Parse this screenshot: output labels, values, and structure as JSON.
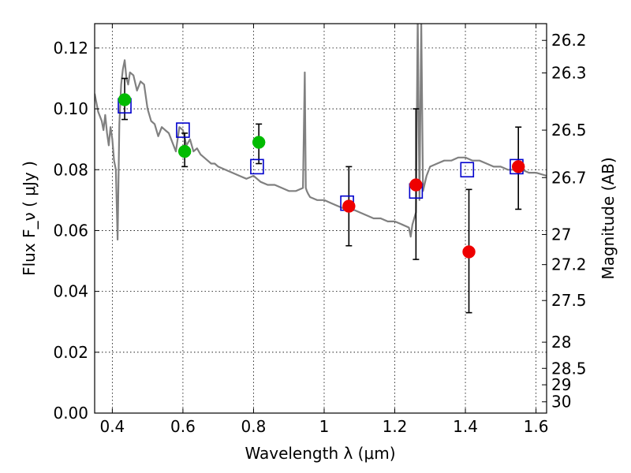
{
  "chart_data": {
    "type": "scatter",
    "xlabel": "Wavelength  λ (μm)",
    "ylabel": "Flux  F_ν  ( μJy )",
    "y2label": "Magnitude (AB)",
    "xlim": [
      0.35,
      1.63
    ],
    "ylim": [
      0.0,
      0.128
    ],
    "grid": true,
    "x_ticks": [
      0.4,
      0.6,
      0.8,
      1.0,
      1.2,
      1.4,
      1.6
    ],
    "x_tick_labels": [
      "0.4",
      "0.6",
      "0.8",
      "1",
      "1.2",
      "1.4",
      "1.6"
    ],
    "y_ticks": [
      0.0,
      0.02,
      0.04,
      0.06,
      0.08,
      0.1,
      0.12
    ],
    "y_tick_labels": [
      "0.00",
      "0.02",
      "0.04",
      "0.06",
      "0.08",
      "0.10",
      "0.12"
    ],
    "y2_ticks": [
      {
        "label": "26.2",
        "flux": 0.1225
      },
      {
        "label": "26.3",
        "flux": 0.1118
      },
      {
        "label": "26.5",
        "flux": 0.093
      },
      {
        "label": "26.7",
        "flux": 0.0774
      },
      {
        "label": "27",
        "flux": 0.0587
      },
      {
        "label": "27.2",
        "flux": 0.0488
      },
      {
        "label": "27.5",
        "flux": 0.037
      },
      {
        "label": "28",
        "flux": 0.0233
      },
      {
        "label": "28.5",
        "flux": 0.0147
      },
      {
        "label": "29",
        "flux": 0.0093
      },
      {
        "label": "30",
        "flux": 0.0037
      }
    ],
    "series": [
      {
        "kind": "model_spectrum",
        "color": "#808080",
        "x": [
          0.35,
          0.36,
          0.37,
          0.375,
          0.38,
          0.385,
          0.39,
          0.395,
          0.4,
          0.405,
          0.41,
          0.415,
          0.42,
          0.425,
          0.43,
          0.435,
          0.44,
          0.445,
          0.45,
          0.46,
          0.47,
          0.48,
          0.49,
          0.5,
          0.51,
          0.52,
          0.53,
          0.54,
          0.55,
          0.56,
          0.57,
          0.58,
          0.59,
          0.6,
          0.61,
          0.62,
          0.63,
          0.64,
          0.65,
          0.66,
          0.67,
          0.68,
          0.69,
          0.7,
          0.72,
          0.74,
          0.76,
          0.78,
          0.8,
          0.82,
          0.84,
          0.86,
          0.88,
          0.9,
          0.92,
          0.94,
          0.945,
          0.948,
          0.951,
          0.955,
          0.96,
          0.98,
          1.0,
          1.02,
          1.04,
          1.06,
          1.08,
          1.1,
          1.12,
          1.14,
          1.16,
          1.18,
          1.2,
          1.22,
          1.24,
          1.245,
          1.25,
          1.26,
          1.265,
          1.27,
          1.275,
          1.28,
          1.29,
          1.3,
          1.32,
          1.34,
          1.36,
          1.38,
          1.4,
          1.42,
          1.44,
          1.46,
          1.48,
          1.5,
          1.52,
          1.54,
          1.56,
          1.58,
          1.6,
          1.63
        ],
        "y": [
          0.105,
          0.099,
          0.096,
          0.093,
          0.098,
          0.092,
          0.088,
          0.094,
          0.09,
          0.083,
          0.08,
          0.057,
          0.095,
          0.108,
          0.113,
          0.116,
          0.11,
          0.108,
          0.112,
          0.111,
          0.106,
          0.109,
          0.108,
          0.1,
          0.096,
          0.095,
          0.091,
          0.094,
          0.093,
          0.092,
          0.089,
          0.086,
          0.094,
          0.093,
          0.088,
          0.09,
          0.086,
          0.087,
          0.085,
          0.084,
          0.083,
          0.082,
          0.082,
          0.081,
          0.08,
          0.079,
          0.078,
          0.077,
          0.078,
          0.076,
          0.075,
          0.075,
          0.074,
          0.073,
          0.073,
          0.074,
          0.112,
          0.074,
          0.073,
          0.072,
          0.071,
          0.07,
          0.07,
          0.069,
          0.068,
          0.067,
          0.067,
          0.066,
          0.065,
          0.064,
          0.064,
          0.063,
          0.063,
          0.062,
          0.061,
          0.058,
          0.062,
          0.066,
          0.13,
          0.07,
          0.128,
          0.073,
          0.078,
          0.081,
          0.082,
          0.083,
          0.083,
          0.084,
          0.084,
          0.083,
          0.083,
          0.082,
          0.081,
          0.081,
          0.08,
          0.08,
          0.08,
          0.079,
          0.079,
          0.078
        ]
      },
      {
        "kind": "model_photometry",
        "marker": "open-square",
        "color": "#0000cc",
        "x": [
          0.435,
          0.6,
          0.81,
          1.065,
          1.26,
          1.405,
          1.545
        ],
        "y": [
          0.101,
          0.093,
          0.081,
          0.069,
          0.073,
          0.08,
          0.081
        ]
      },
      {
        "kind": "observed",
        "marker": "filled-circle",
        "color": "#00bb00",
        "x": [
          0.435,
          0.605,
          0.815
        ],
        "y": [
          0.103,
          0.086,
          0.089
        ],
        "err_low": [
          0.0965,
          0.081,
          0.082
        ],
        "err_high": [
          0.11,
          0.092,
          0.095
        ]
      },
      {
        "kind": "observed",
        "marker": "filled-circle",
        "color": "#ee0000",
        "x": [
          1.07,
          1.26,
          1.41,
          1.55
        ],
        "y": [
          0.068,
          0.075,
          0.053,
          0.081
        ],
        "err_low": [
          0.055,
          0.0505,
          0.033,
          0.067
        ],
        "err_high": [
          0.081,
          0.1,
          0.0735,
          0.094
        ]
      }
    ]
  }
}
